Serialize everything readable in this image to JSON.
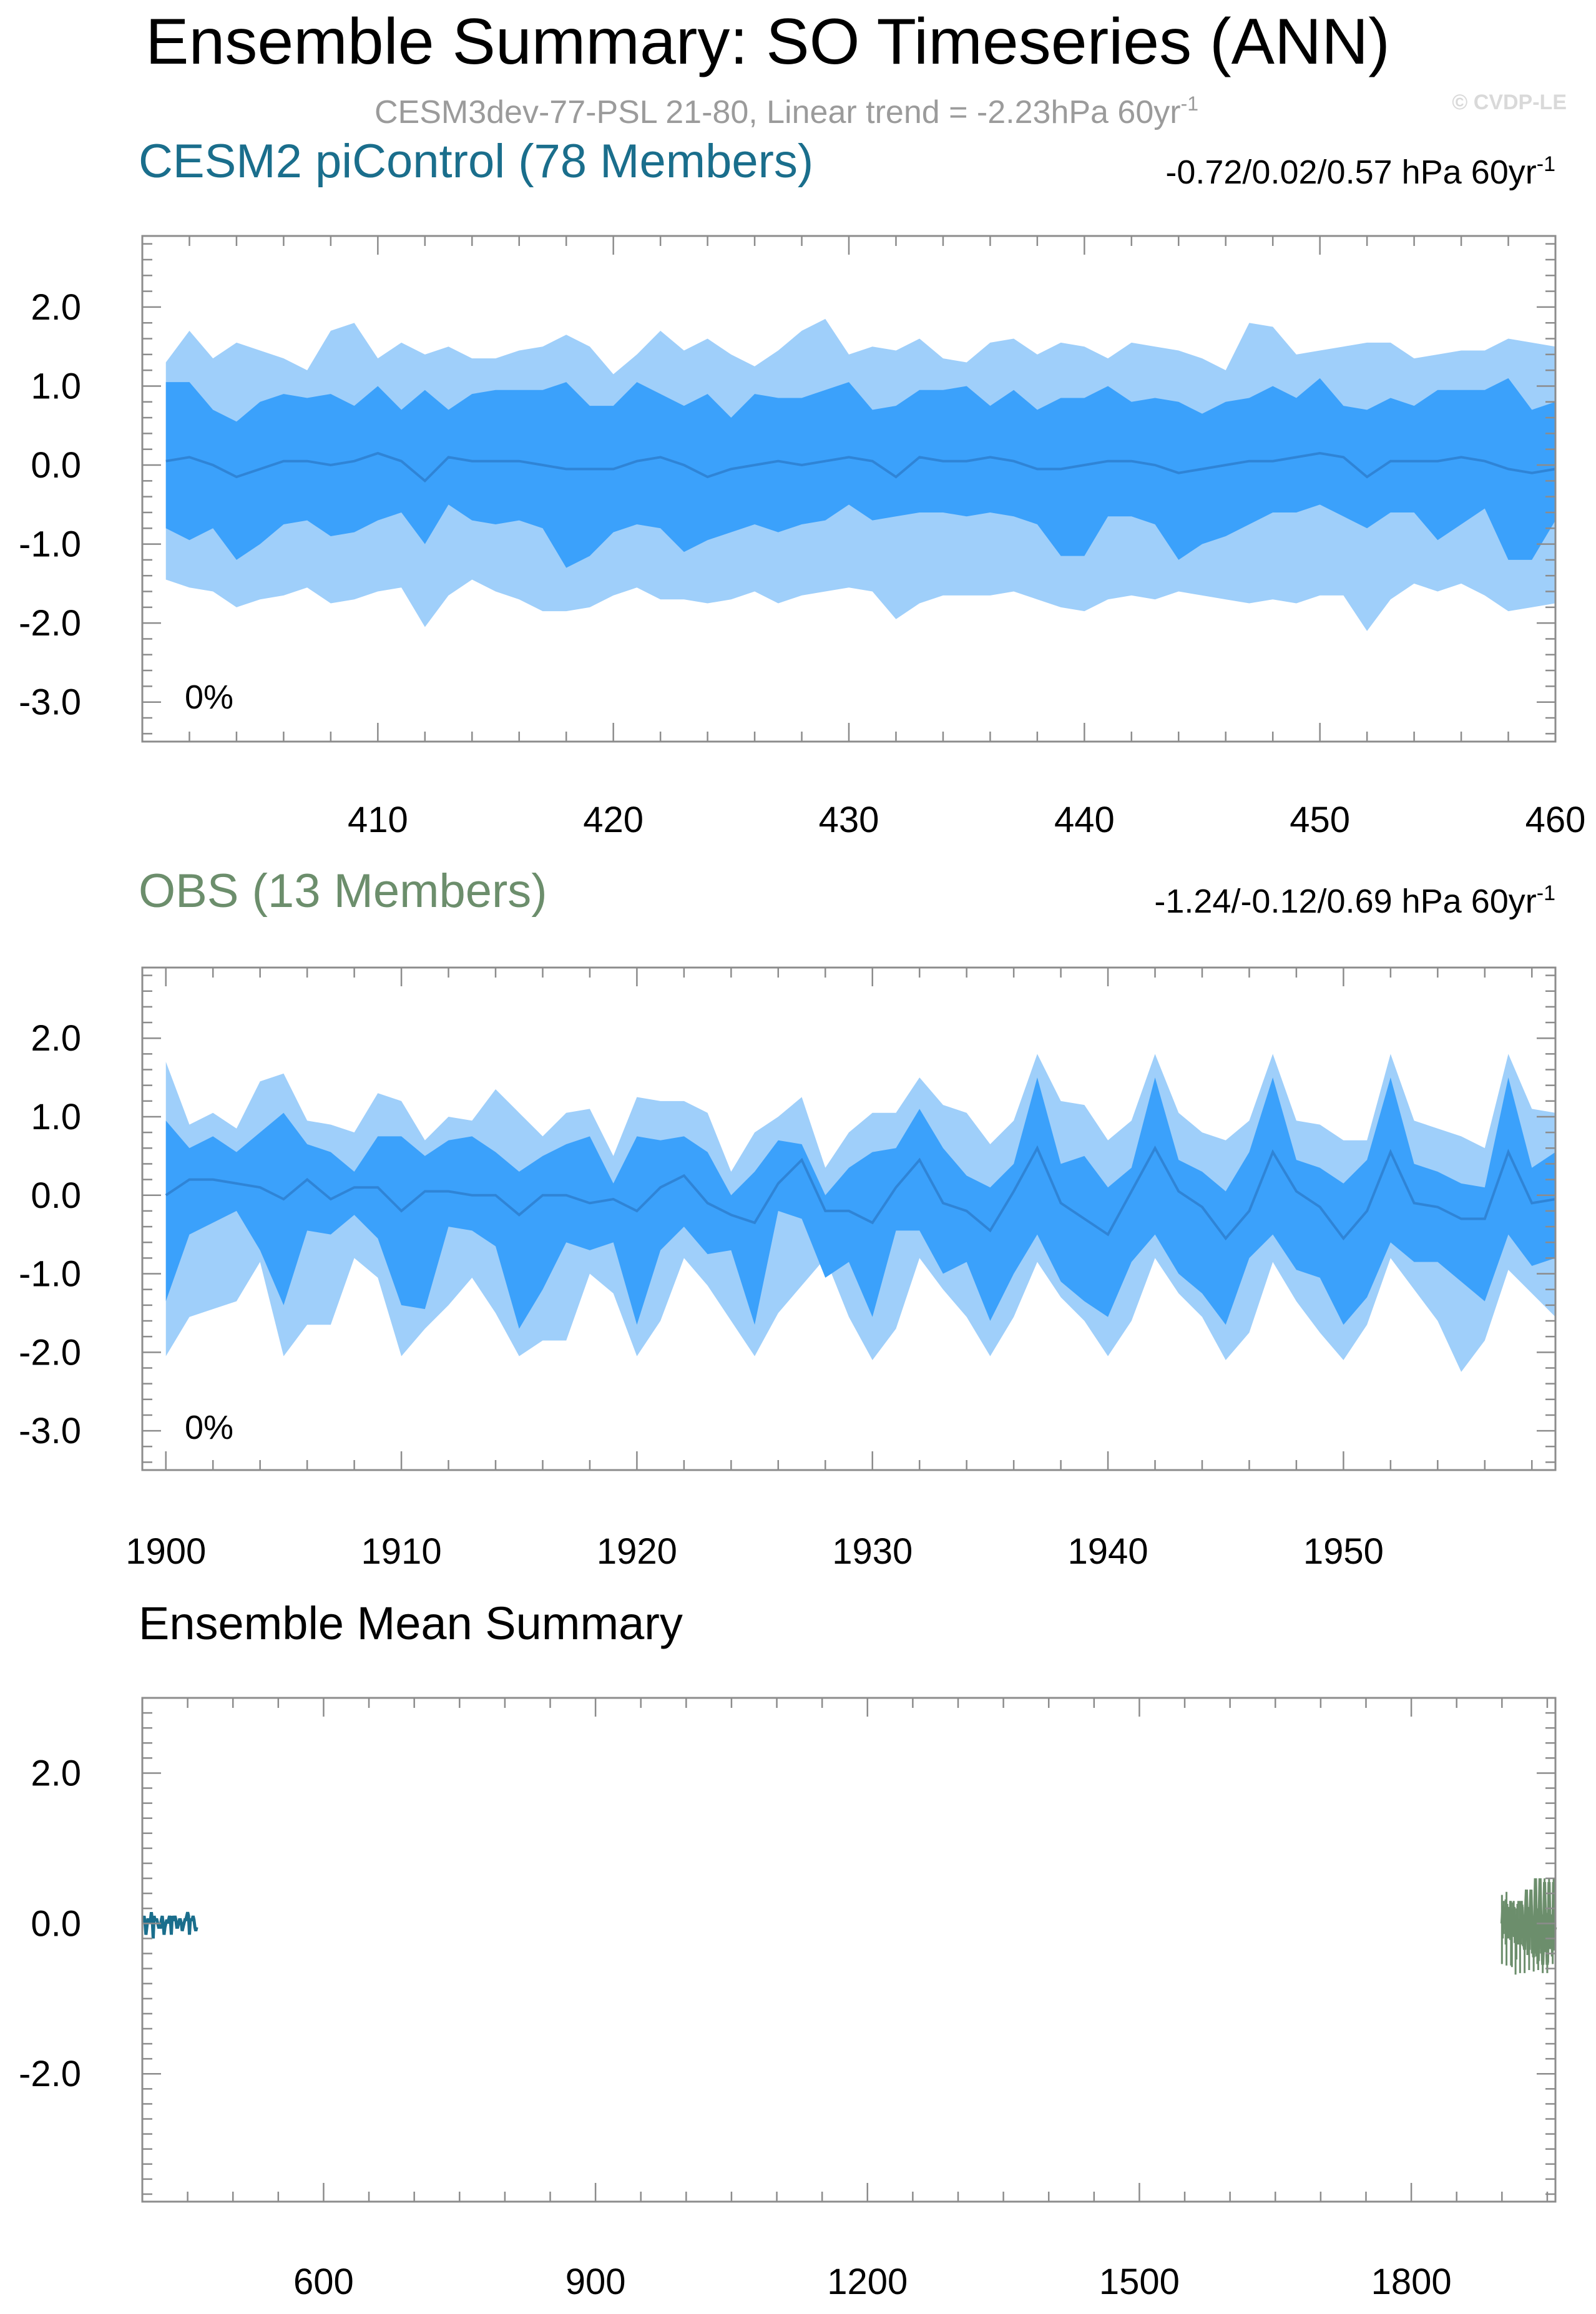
{
  "title": "Ensemble Summary: SO Timeseries (ANN)",
  "subtitle": {
    "text": "CESM3dev-77-PSL 21-80, Linear trend = -2.23hPa 60yr",
    "sup": "-1"
  },
  "watermark": "© CVDP-LE",
  "colors": {
    "outer_band": "#9fcffa",
    "inner_band": "#3ba1fb",
    "mean_line": "#2f84d6",
    "cesm_title": "#1a6e8c",
    "obs_title": "#6c8e6c",
    "subtitle": "#9b9b9b",
    "watermark": "#d9d9d9",
    "frame": "#8c8c8c"
  },
  "panels": {
    "cesm": {
      "title": "CESM2 piControl (78 Members)",
      "trend_text": "-0.72/0.02/0.57 hPa 60yr",
      "trend_sup": "-1",
      "percent": "0%"
    },
    "obs": {
      "title": "OBS (13 Members)",
      "trend_text": "-1.24/-0.12/0.69 hPa 60yr",
      "trend_sup": "-1",
      "percent": "0%"
    },
    "mean": {
      "title": "Ensemble Mean Summary"
    }
  },
  "chart_data": [
    {
      "type": "area",
      "name": "CESM2 piControl (78 Members)",
      "xlim": [
        400,
        460
      ],
      "ylim": [
        -3.5,
        2.9
      ],
      "x_ticks": [
        410,
        420,
        430,
        440,
        450,
        460
      ],
      "y_ticks": [
        2.0,
        1.0,
        0.0,
        -1.0,
        -2.0,
        -3.0
      ],
      "y_tick_labels": [
        "2.0",
        "1.0",
        "0.0",
        "-1.0",
        "-2.0",
        "-3.0"
      ],
      "x": [
        401,
        402,
        403,
        404,
        405,
        406,
        407,
        408,
        409,
        410,
        411,
        412,
        413,
        414,
        415,
        416,
        417,
        418,
        419,
        420,
        421,
        422,
        423,
        424,
        425,
        426,
        427,
        428,
        429,
        430,
        431,
        432,
        433,
        434,
        435,
        436,
        437,
        438,
        439,
        440,
        441,
        442,
        443,
        444,
        445,
        446,
        447,
        448,
        449,
        450,
        451,
        452,
        453,
        454,
        455,
        456,
        457,
        458,
        459,
        460
      ],
      "outer_upper": [
        1.3,
        1.7,
        1.35,
        1.55,
        1.45,
        1.35,
        1.2,
        1.7,
        1.8,
        1.35,
        1.55,
        1.4,
        1.5,
        1.35,
        1.35,
        1.45,
        1.5,
        1.65,
        1.5,
        1.15,
        1.4,
        1.7,
        1.45,
        1.6,
        1.4,
        1.25,
        1.45,
        1.7,
        1.85,
        1.4,
        1.5,
        1.45,
        1.6,
        1.35,
        1.3,
        1.55,
        1.6,
        1.4,
        1.55,
        1.5,
        1.35,
        1.55,
        1.5,
        1.45,
        1.35,
        1.2,
        1.8,
        1.75,
        1.4,
        1.45,
        1.5,
        1.55,
        1.55,
        1.35,
        1.4,
        1.45,
        1.45,
        1.6,
        1.55,
        1.5
      ],
      "inner_upper": [
        1.05,
        1.05,
        0.7,
        0.55,
        0.8,
        0.9,
        0.85,
        0.9,
        0.75,
        1.0,
        0.7,
        0.95,
        0.7,
        0.9,
        0.95,
        0.95,
        0.95,
        1.05,
        0.75,
        0.75,
        1.05,
        0.9,
        0.75,
        0.9,
        0.6,
        0.9,
        0.85,
        0.85,
        0.95,
        1.05,
        0.7,
        0.75,
        0.95,
        0.95,
        1.0,
        0.75,
        0.95,
        0.7,
        0.85,
        0.85,
        1.0,
        0.8,
        0.85,
        0.8,
        0.65,
        0.8,
        0.85,
        1.0,
        0.85,
        1.1,
        0.75,
        0.7,
        0.85,
        0.75,
        0.95,
        0.95,
        0.95,
        1.1,
        0.7,
        0.8
      ],
      "mean": [
        0.05,
        0.1,
        0.0,
        -0.15,
        -0.05,
        0.05,
        0.05,
        0.0,
        0.05,
        0.15,
        0.05,
        -0.2,
        0.1,
        0.05,
        0.05,
        0.05,
        0.0,
        -0.05,
        -0.05,
        -0.05,
        0.05,
        0.1,
        0.0,
        -0.15,
        -0.05,
        0.0,
        0.05,
        0.0,
        0.05,
        0.1,
        0.05,
        -0.15,
        0.1,
        0.05,
        0.05,
        0.1,
        0.05,
        -0.05,
        -0.05,
        0.0,
        0.05,
        0.05,
        0.0,
        -0.1,
        -0.05,
        0.0,
        0.05,
        0.05,
        0.1,
        0.15,
        0.1,
        -0.15,
        0.05,
        0.05,
        0.05,
        0.1,
        0.05,
        -0.05,
        -0.1,
        -0.05
      ],
      "inner_lower": [
        -0.8,
        -0.95,
        -0.8,
        -1.2,
        -1.0,
        -0.75,
        -0.7,
        -0.9,
        -0.85,
        -0.7,
        -0.6,
        -1.0,
        -0.5,
        -0.7,
        -0.75,
        -0.7,
        -0.8,
        -1.3,
        -1.15,
        -0.85,
        -0.75,
        -0.8,
        -1.1,
        -0.95,
        -0.85,
        -0.75,
        -0.85,
        -0.75,
        -0.7,
        -0.5,
        -0.7,
        -0.65,
        -0.6,
        -0.6,
        -0.65,
        -0.6,
        -0.65,
        -0.75,
        -1.15,
        -1.15,
        -0.65,
        -0.65,
        -0.75,
        -1.2,
        -1.0,
        -0.9,
        -0.75,
        -0.6,
        -0.6,
        -0.5,
        -0.65,
        -0.8,
        -0.6,
        -0.6,
        -0.95,
        -0.75,
        -0.55,
        -1.2,
        -1.2,
        -0.7
      ],
      "outer_lower": [
        -1.45,
        -1.55,
        -1.6,
        -1.8,
        -1.7,
        -1.65,
        -1.55,
        -1.75,
        -1.7,
        -1.6,
        -1.55,
        -2.05,
        -1.65,
        -1.45,
        -1.6,
        -1.7,
        -1.85,
        -1.85,
        -1.8,
        -1.65,
        -1.55,
        -1.7,
        -1.7,
        -1.75,
        -1.7,
        -1.6,
        -1.75,
        -1.65,
        -1.6,
        -1.55,
        -1.6,
        -1.95,
        -1.75,
        -1.65,
        -1.65,
        -1.65,
        -1.6,
        -1.7,
        -1.8,
        -1.85,
        -1.7,
        -1.65,
        -1.7,
        -1.6,
        -1.65,
        -1.7,
        -1.75,
        -1.7,
        -1.75,
        -1.65,
        -1.65,
        -2.1,
        -1.7,
        -1.5,
        -1.6,
        -1.5,
        -1.65,
        -1.85,
        -1.8,
        -1.75
      ]
    },
    {
      "type": "area",
      "name": "OBS (13 Members)",
      "xlim": [
        1899,
        1959
      ],
      "ylim": [
        -3.5,
        2.9
      ],
      "x_ticks": [
        1900,
        1910,
        1920,
        1930,
        1940,
        1950
      ],
      "y_ticks": [
        2.0,
        1.0,
        0.0,
        -1.0,
        -2.0,
        -3.0
      ],
      "y_tick_labels": [
        "2.0",
        "1.0",
        "0.0",
        "-1.0",
        "-2.0",
        "-3.0"
      ],
      "x": [
        1900,
        1901,
        1902,
        1903,
        1904,
        1905,
        1906,
        1907,
        1908,
        1909,
        1910,
        1911,
        1912,
        1913,
        1914,
        1915,
        1916,
        1917,
        1918,
        1919,
        1920,
        1921,
        1922,
        1923,
        1924,
        1925,
        1926,
        1927,
        1928,
        1929,
        1930,
        1931,
        1932,
        1933,
        1934,
        1935,
        1936,
        1937,
        1938,
        1939,
        1940,
        1941,
        1942,
        1943,
        1944,
        1945,
        1946,
        1947,
        1948,
        1949,
        1950,
        1951,
        1952,
        1953,
        1954,
        1955,
        1956,
        1957,
        1958,
        1959
      ],
      "outer_upper": [
        1.7,
        0.9,
        1.05,
        0.85,
        1.45,
        1.55,
        0.95,
        0.9,
        0.8,
        1.3,
        1.2,
        0.7,
        1.0,
        0.95,
        1.35,
        1.05,
        0.75,
        1.05,
        1.1,
        0.5,
        1.25,
        1.2,
        1.2,
        1.05,
        0.3,
        0.8,
        1.0,
        1.25,
        0.35,
        0.8,
        1.05,
        1.05,
        1.5,
        1.15,
        1.05,
        0.65,
        0.95,
        1.8,
        1.2,
        1.15,
        0.7,
        0.95,
        1.8,
        1.05,
        0.8,
        0.7,
        0.95,
        1.8,
        0.95,
        0.9,
        0.7,
        0.7,
        1.8,
        0.95,
        0.85,
        0.75,
        0.6,
        1.8,
        1.1,
        1.05
      ],
      "inner_upper": [
        0.95,
        0.6,
        0.75,
        0.55,
        0.8,
        1.05,
        0.65,
        0.55,
        0.3,
        0.75,
        0.75,
        0.5,
        0.7,
        0.75,
        0.55,
        0.3,
        0.5,
        0.65,
        0.75,
        0.15,
        0.75,
        0.7,
        0.75,
        0.55,
        0.0,
        0.3,
        0.7,
        0.65,
        0.0,
        0.35,
        0.55,
        0.6,
        1.1,
        0.6,
        0.25,
        0.1,
        0.4,
        1.5,
        0.4,
        0.5,
        0.1,
        0.35,
        1.5,
        0.45,
        0.3,
        0.05,
        0.55,
        1.5,
        0.45,
        0.35,
        0.15,
        0.45,
        1.5,
        0.4,
        0.3,
        0.15,
        0.1,
        1.5,
        0.35,
        0.55
      ],
      "mean": [
        0.0,
        0.2,
        0.2,
        0.15,
        0.1,
        -0.05,
        0.2,
        -0.05,
        0.1,
        0.1,
        -0.2,
        0.05,
        0.05,
        0.0,
        0.0,
        -0.25,
        0.0,
        0.0,
        -0.1,
        -0.05,
        -0.2,
        0.1,
        0.25,
        -0.1,
        -0.25,
        -0.35,
        0.15,
        0.45,
        -0.2,
        -0.2,
        -0.35,
        0.1,
        0.45,
        -0.1,
        -0.2,
        -0.45,
        0.05,
        0.6,
        -0.1,
        -0.3,
        -0.5,
        0.05,
        0.6,
        0.05,
        -0.15,
        -0.55,
        -0.2,
        0.55,
        0.05,
        -0.15,
        -0.55,
        -0.2,
        0.55,
        -0.1,
        -0.15,
        -0.3,
        -0.3,
        0.55,
        -0.1,
        -0.05
      ],
      "inner_lower": [
        -1.35,
        -0.5,
        -0.35,
        -0.2,
        -0.7,
        -1.4,
        -0.45,
        -0.5,
        -0.25,
        -0.55,
        -1.4,
        -1.45,
        -0.4,
        -0.45,
        -0.65,
        -1.7,
        -1.2,
        -0.6,
        -0.7,
        -0.6,
        -1.65,
        -0.7,
        -0.4,
        -0.75,
        -0.7,
        -1.65,
        -0.2,
        -0.3,
        -1.05,
        -0.85,
        -1.55,
        -0.45,
        -0.45,
        -1.0,
        -0.85,
        -1.6,
        -1.0,
        -0.5,
        -1.1,
        -1.35,
        -1.55,
        -0.85,
        -0.5,
        -1.0,
        -1.25,
        -1.65,
        -0.8,
        -0.5,
        -0.95,
        -1.05,
        -1.65,
        -1.3,
        -0.6,
        -0.85,
        -0.85,
        -1.1,
        -1.35,
        -0.5,
        -0.9,
        -0.8
      ],
      "outer_lower": [
        -2.05,
        -1.55,
        -1.45,
        -1.35,
        -0.85,
        -2.05,
        -1.65,
        -1.65,
        -0.8,
        -1.05,
        -2.05,
        -1.7,
        -1.4,
        -1.05,
        -1.5,
        -2.05,
        -1.85,
        -1.85,
        -1.0,
        -1.25,
        -2.05,
        -1.6,
        -0.8,
        -1.15,
        -1.6,
        -2.05,
        -1.5,
        -1.15,
        -0.8,
        -1.55,
        -2.1,
        -1.7,
        -0.8,
        -1.2,
        -1.55,
        -2.05,
        -1.55,
        -0.85,
        -1.3,
        -1.6,
        -2.05,
        -1.6,
        -0.8,
        -1.25,
        -1.55,
        -2.1,
        -1.75,
        -0.85,
        -1.35,
        -1.75,
        -2.1,
        -1.65,
        -0.8,
        -1.2,
        -1.6,
        -2.25,
        -1.85,
        -0.95,
        -1.25,
        -1.55
      ]
    },
    {
      "type": "line",
      "name": "Ensemble Mean Summary",
      "xlim": [
        400,
        1959
      ],
      "ylim": [
        -3.7,
        3.0
      ],
      "x_ticks": [
        600,
        900,
        1200,
        1500,
        1800
      ],
      "y_ticks": [
        2.0,
        0.0,
        -2.0
      ],
      "y_tick_labels": [
        "2.0",
        "0.0",
        "-2.0"
      ],
      "series_refs": [
        "cesm",
        "obs"
      ]
    }
  ]
}
